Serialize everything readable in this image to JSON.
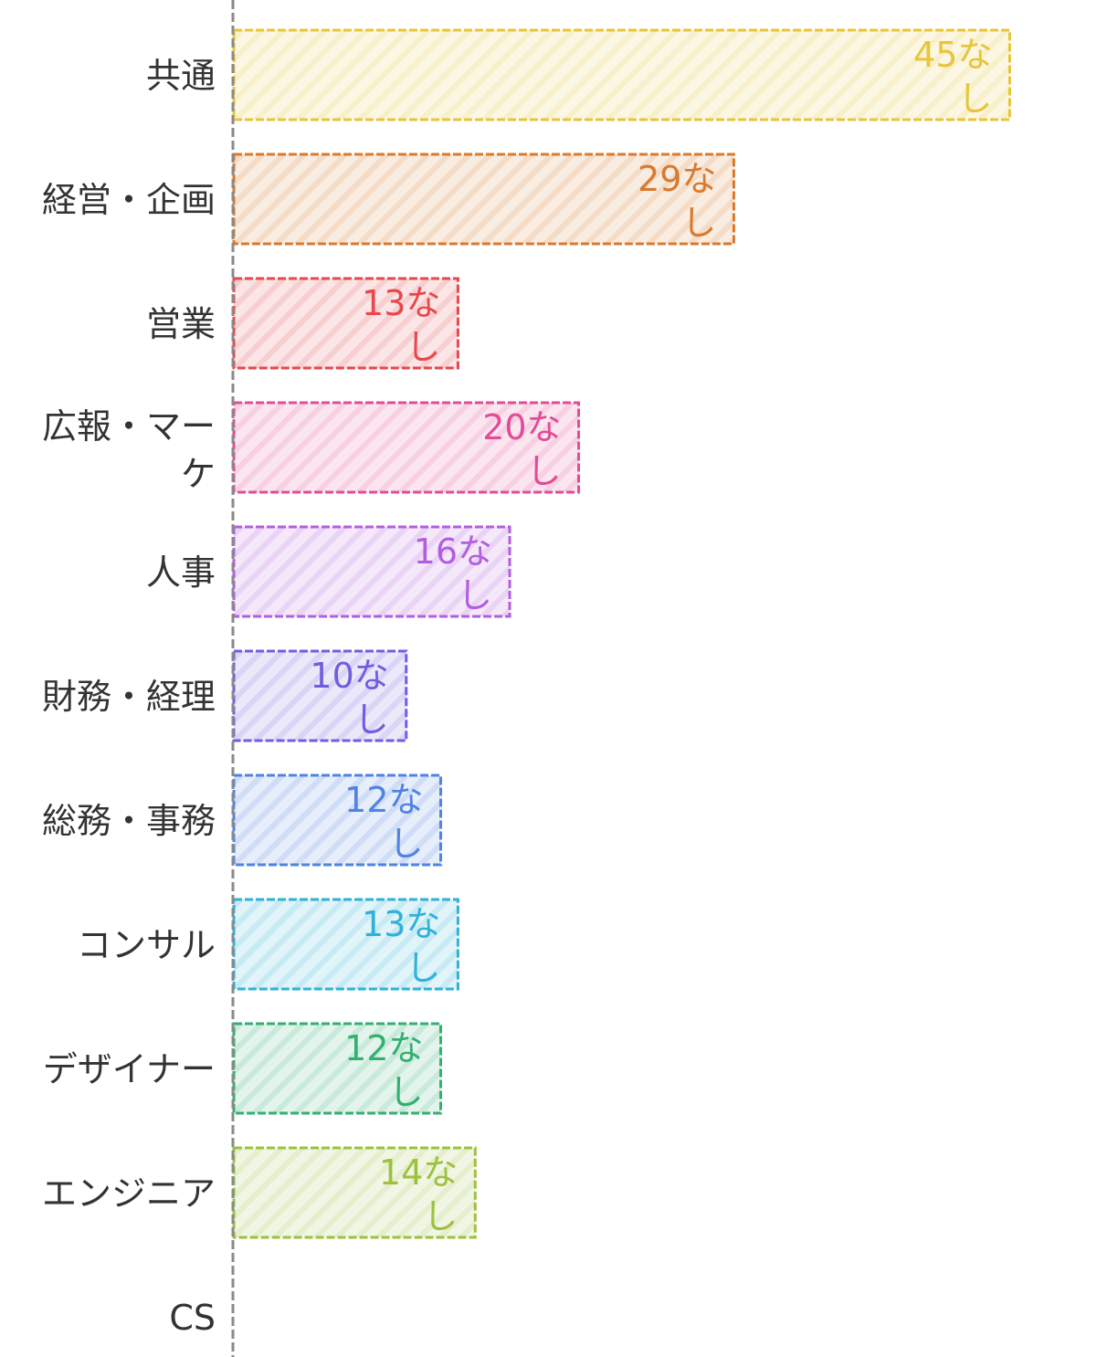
{
  "chart_data": {
    "type": "bar",
    "orientation": "horizontal",
    "title": "",
    "xlabel": "",
    "ylabel": "",
    "grid": false,
    "categories": [
      "共通",
      "経営・企画",
      "営業",
      "広報・マーケ",
      "人事",
      "財務・経理",
      "総務・事務",
      "コンサル",
      "デザイナー",
      "エンジニア",
      "CS"
    ],
    "values": [
      45,
      29,
      13,
      20,
      16,
      10,
      12,
      13,
      12,
      14,
      null
    ],
    "value_labels": [
      "45なし",
      "29なし",
      "13なし",
      "20なし",
      "16なし",
      "10なし",
      "12なし",
      "13なし",
      "12なし",
      "14なし",
      ""
    ],
    "colors": [
      "#e8c53a",
      "#d97a2e",
      "#e8474c",
      "#e24c97",
      "#b25ee0",
      "#6f5fe0",
      "#4f84e3",
      "#2eb2d8",
      "#33b070",
      "#9cc23d",
      "#999999"
    ],
    "xlim": [
      0,
      49
    ]
  }
}
